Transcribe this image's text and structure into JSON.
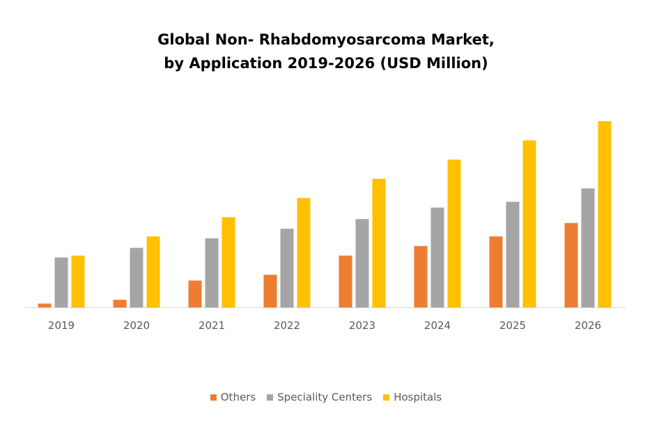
{
  "title_line1": "Global Non- Rhabdomyosarcoma Market,",
  "title_line2": "by Application 2019-2026 (USD Million)",
  "chart_data": {
    "type": "bar",
    "title": "Global Non- Rhabdomyosarcoma Market, by Application 2019-2026 (USD Million)",
    "categories": [
      "2019",
      "2020",
      "2021",
      "2022",
      "2023",
      "2024",
      "2025",
      "2026"
    ],
    "series": [
      {
        "name": "Others",
        "color": "#ED7D31",
        "values": [
          2,
          4,
          14,
          17,
          27,
          32,
          37,
          44
        ]
      },
      {
        "name": "Speciality Centers",
        "color": "#A5A5A5",
        "values": [
          26,
          31,
          36,
          41,
          46,
          52,
          55,
          62
        ]
      },
      {
        "name": "Hospitals",
        "color": "#FFC000",
        "values": [
          27,
          37,
          47,
          57,
          67,
          77,
          87,
          97
        ]
      }
    ],
    "ylim": [
      0,
      100
    ],
    "grid": false,
    "legend_position": "bottom",
    "xlabel": "",
    "ylabel": ""
  }
}
